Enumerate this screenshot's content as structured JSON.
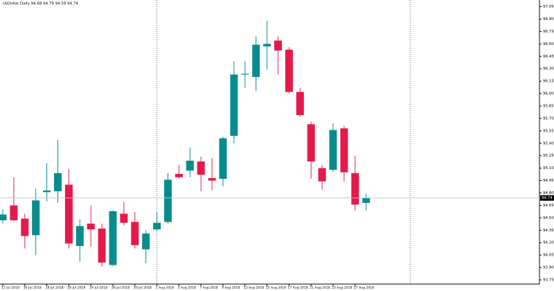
{
  "chart_data": {
    "type": "candlestick",
    "title": "UsDollar,Daily  94.68 94.79 94.59 94.74",
    "categories": [
      "12 Jul 2018",
      null,
      "16 Jul 2018",
      null,
      "18 Jul 2018",
      null,
      "20 Jul 2018",
      null,
      "24 Jul 2018",
      null,
      "26 Jul 2018",
      null,
      "30 Jul 2018",
      null,
      "1 Aug 2018",
      null,
      "3 Aug 2018",
      null,
      "7 Aug 2018",
      null,
      "9 Aug 2018",
      null,
      "13 Aug 2018",
      null,
      "15 Aug 2018",
      null,
      "17 Aug 2018",
      null,
      "21 Aug 2018",
      null,
      "23 Aug 2018",
      null,
      "27 Aug 2018",
      null
    ],
    "open": [
      94.47,
      94.65,
      94.49,
      94.29,
      94.81,
      94.82,
      94.9,
      94.16,
      94.43,
      94.37,
      93.93,
      94.55,
      94.45,
      94.12,
      94.36,
      94.45,
      95.03,
      95.07,
      95.18,
      94.98,
      94.97,
      95.49,
      96.23,
      96.2,
      96.57,
      96.64,
      96.53,
      96.02,
      95.63,
      95.1,
      95.08,
      95.58,
      95.04,
      94.68
    ],
    "high": [
      94.6,
      94.99,
      94.55,
      94.85,
      95.16,
      95.44,
      95.09,
      94.48,
      94.65,
      94.43,
      94.59,
      94.69,
      94.57,
      94.35,
      94.56,
      95.04,
      95.14,
      95.35,
      95.24,
      95.22,
      95.48,
      96.39,
      96.39,
      96.69,
      96.88,
      96.69,
      96.56,
      96.07,
      95.66,
      95.14,
      95.64,
      95.61,
      95.25,
      94.79
    ],
    "low": [
      94.43,
      94.46,
      94.13,
      94.05,
      94.7,
      94.68,
      94.13,
      93.97,
      94.15,
      93.91,
      93.92,
      94.41,
      94.13,
      93.95,
      94.34,
      94.43,
      94.98,
      94.99,
      94.82,
      94.83,
      94.88,
      95.4,
      96.07,
      96.03,
      96.29,
      96.23,
      96.0,
      95.72,
      94.97,
      94.84,
      95.05,
      94.94,
      94.59,
      94.59
    ],
    "close": [
      94.54,
      94.47,
      94.28,
      94.71,
      94.83,
      95.04,
      94.19,
      94.4,
      94.36,
      93.96,
      94.58,
      94.44,
      94.17,
      94.31,
      94.44,
      94.96,
      94.99,
      95.19,
      95.02,
      94.95,
      95.46,
      96.23,
      96.24,
      96.59,
      96.6,
      96.52,
      96.02,
      95.74,
      95.18,
      94.94,
      95.56,
      95.05,
      94.66,
      94.74
    ],
    "up_color": "#0a8c8c",
    "down_color": "#e5194a",
    "last_price": 94.74,
    "ylim": [
      93.7,
      97.13
    ],
    "yticks": [
      93.75,
      {
        "value": 93.9,
        "label": "93.90"
      },
      94.05,
      {
        "value": 94.2,
        "label": "94.20"
      },
      94.35,
      {
        "value": 94.5,
        "label": "94.50"
      },
      94.65,
      {
        "value": 94.8,
        "label": "94.80"
      },
      94.95,
      {
        "value": 95.1,
        "label": "95.10"
      },
      95.25,
      {
        "value": 95.4,
        "label": "95.40"
      },
      95.55,
      {
        "value": 95.7,
        "label": "95.70"
      },
      95.85,
      {
        "value": 96.0,
        "label": "96.00"
      },
      96.15,
      {
        "value": 96.3,
        "label": "96.30"
      },
      96.45,
      {
        "value": 96.6,
        "label": "96.60"
      },
      96.75,
      {
        "value": 96.9,
        "label": "96.90"
      },
      97.05
    ]
  }
}
